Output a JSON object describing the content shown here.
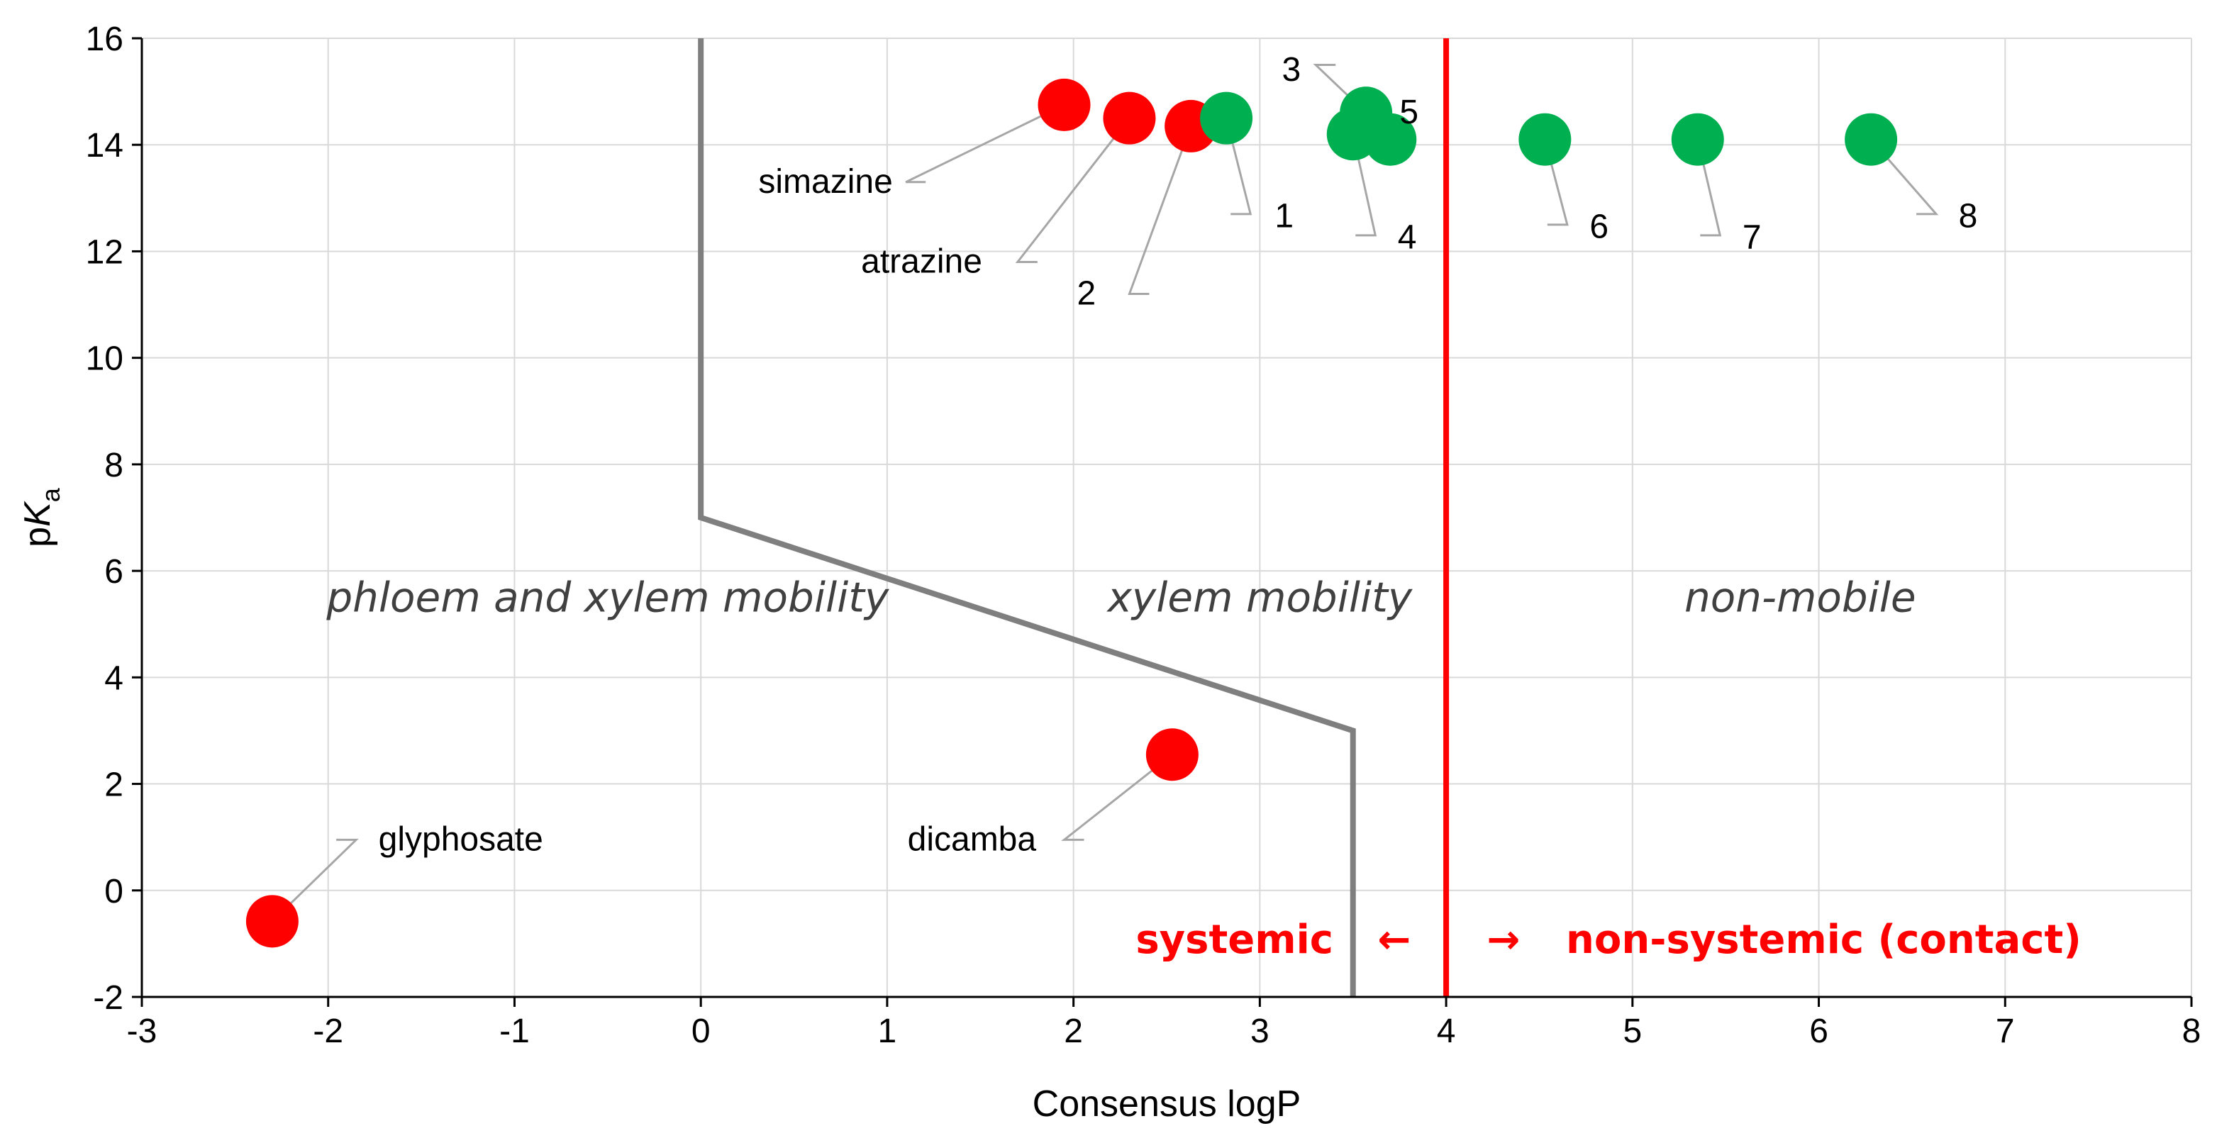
{
  "chart_data": {
    "type": "scatter",
    "title": "",
    "xlabel": "Consensus logP",
    "ylabel_main": "p",
    "ylabel_italic": "K",
    "ylabel_sub": "a",
    "xlim": [
      -3,
      8
    ],
    "ylim": [
      -2,
      16
    ],
    "x_ticks": [
      "-3",
      "-2",
      "-1",
      "0",
      "1",
      "2",
      "3",
      "4",
      "5",
      "6",
      "7",
      "8"
    ],
    "y_ticks": [
      "-2",
      "0",
      "2",
      "4",
      "6",
      "8",
      "10",
      "12",
      "14",
      "16"
    ],
    "grid": true,
    "series": [
      {
        "name": "red compounds",
        "color": "#ff0000",
        "points": [
          {
            "label": "simazine",
            "x": 1.95,
            "y": 14.75
          },
          {
            "label": "atrazine",
            "x": 2.3,
            "y": 14.5
          },
          {
            "label": "2",
            "x": 2.63,
            "y": 14.35
          },
          {
            "label": "dicamba",
            "x": 2.53,
            "y": 2.55
          },
          {
            "label": "glyphosate",
            "x": -2.3,
            "y": -0.58
          }
        ]
      },
      {
        "name": "green compounds",
        "color": "#00b050",
        "points": [
          {
            "label": "1",
            "x": 2.82,
            "y": 14.5
          },
          {
            "label": "3",
            "x": 3.57,
            "y": 14.6
          },
          {
            "label": "5",
            "x": 3.7,
            "y": 14.1
          },
          {
            "label": "4",
            "x": 3.5,
            "y": 14.2
          },
          {
            "label": "6",
            "x": 4.53,
            "y": 14.1
          },
          {
            "label": "7",
            "x": 5.35,
            "y": 14.1
          },
          {
            "label": "8",
            "x": 6.28,
            "y": 14.1
          }
        ]
      }
    ],
    "boundary_line": {
      "color": "#7f7f7f",
      "points": [
        [
          0,
          16
        ],
        [
          0,
          7
        ],
        [
          3.5,
          3
        ],
        [
          3.5,
          -2
        ]
      ]
    },
    "threshold_line": {
      "x": 4,
      "color": "#ff0000"
    },
    "regions": [
      {
        "text": "phloem and xylem mobility",
        "x": -0.5,
        "y": 5.5
      },
      {
        "text": "xylem mobility",
        "x": 3.0,
        "y": 5.5
      },
      {
        "text": "non-mobile",
        "x": 5.9,
        "y": 5.5
      }
    ],
    "mobility_labels": {
      "systemic": "systemic",
      "left_arrow": "←",
      "right_arrow": "→",
      "non_systemic": "non-systemic (contact)"
    }
  }
}
